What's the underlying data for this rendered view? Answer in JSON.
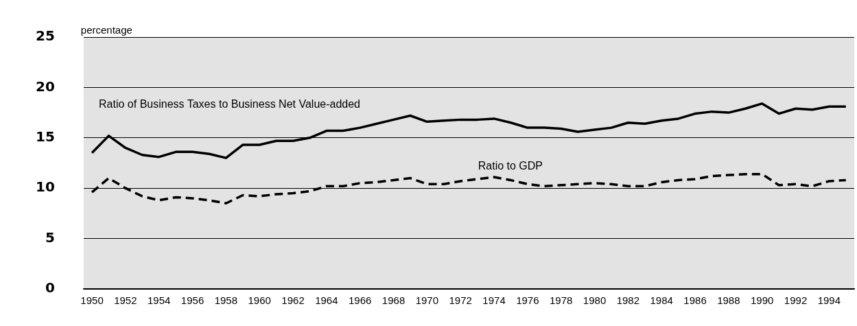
{
  "chart_data": {
    "type": "line",
    "ylabel": "percentage",
    "categories": [
      "1950",
      null,
      "1952",
      null,
      "1954",
      null,
      "1956",
      null,
      "1958",
      null,
      "1960",
      null,
      "1962",
      null,
      "1964",
      null,
      "1966",
      null,
      "1968",
      null,
      "1970",
      null,
      "1972",
      null,
      "1974",
      null,
      "1976",
      null,
      "1978",
      null,
      "1980",
      null,
      "1982",
      null,
      "1984",
      null,
      "1986",
      null,
      "1988",
      null,
      "1990",
      null,
      "1992",
      null,
      "1994",
      null
    ],
    "series": [
      {
        "name": "Ratio of Business Taxes to Business Net Value-added",
        "color": "#000000",
        "line_style": "solid",
        "values": [
          13.5,
          15.2,
          14.0,
          13.3,
          13.1,
          13.6,
          13.6,
          13.4,
          13.0,
          14.3,
          14.3,
          14.7,
          14.7,
          15.0,
          15.7,
          15.7,
          16.0,
          16.4,
          16.8,
          17.2,
          16.6,
          16.7,
          16.8,
          16.8,
          16.9,
          16.5,
          16.0,
          16.0,
          15.9,
          15.6,
          15.8,
          16.0,
          16.5,
          16.4,
          16.7,
          16.9,
          17.4,
          17.6,
          17.5,
          17.9,
          18.4,
          17.4,
          17.9,
          17.8,
          18.1,
          18.1
        ]
      },
      {
        "name": "Ratio to GDP",
        "color": "#000000",
        "line_style": "dashed",
        "values": [
          9.6,
          11.0,
          10.0,
          9.2,
          8.8,
          9.1,
          9.0,
          8.8,
          8.5,
          9.3,
          9.2,
          9.4,
          9.5,
          9.7,
          10.2,
          10.2,
          10.5,
          10.6,
          10.8,
          11.0,
          10.4,
          10.4,
          10.7,
          10.9,
          11.1,
          10.8,
          10.4,
          10.2,
          10.3,
          10.4,
          10.5,
          10.4,
          10.2,
          10.2,
          10.6,
          10.8,
          10.9,
          11.2,
          11.3,
          11.4,
          11.4,
          10.3,
          10.4,
          10.2,
          10.7,
          10.8
        ]
      }
    ],
    "ylim": [
      0,
      25
    ],
    "yticks": [
      0,
      5,
      10,
      15,
      20,
      25
    ],
    "grid": "y",
    "legend": false,
    "marker": "none"
  }
}
